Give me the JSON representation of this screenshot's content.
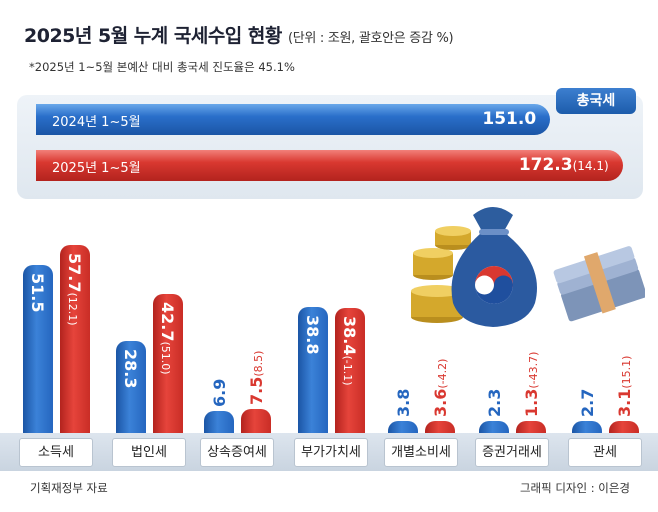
{
  "title": "2025년 5월 누계 국세수입 현황",
  "unit_note": "(단위 : 조원, 괄호안은 증감 %)",
  "footnote": "*2025년 1~5월 본예산 대비 총국세 진도율은 45.1%",
  "source": "기획재정부 자료",
  "credit": "그래픽 디자인 : 이은경",
  "colors": {
    "blue": "#2566bf",
    "red": "#d93830",
    "panel": "#e4ebf2"
  },
  "chart_data": [
    {
      "type": "bar",
      "orientation": "horizontal",
      "title": "총국세",
      "categories": [
        "2024년 1~5월",
        "2025년 1~5월"
      ],
      "values": [
        151.0,
        172.3
      ],
      "value_labels": [
        "151.0",
        "172.3"
      ],
      "change_labels": [
        "",
        "(14.1)"
      ]
    },
    {
      "type": "bar",
      "orientation": "vertical",
      "categories": [
        "소득세",
        "법인세",
        "상속증여세",
        "부가가치세",
        "개별소비세",
        "증권거래세",
        "관세"
      ],
      "series": [
        {
          "name": "2024년 1~5월",
          "values": [
            51.5,
            28.3,
            6.9,
            38.8,
            3.8,
            2.3,
            2.7
          ],
          "labels": [
            "51.5",
            "28.3",
            "6.9",
            "38.8",
            "3.8",
            "2.3",
            "2.7"
          ]
        },
        {
          "name": "2025년 1~5월",
          "values": [
            57.7,
            42.7,
            7.5,
            38.4,
            3.6,
            1.3,
            3.1
          ],
          "labels": [
            "57.7",
            "42.7",
            "7.5",
            "38.4",
            "3.6",
            "1.3",
            "3.1"
          ],
          "change_labels": [
            "(12.1)",
            "(51.0)",
            "(8.5)",
            "(-1.1)",
            "(-4.2)",
            "(-43.7)",
            "(15.1)"
          ]
        }
      ]
    }
  ]
}
